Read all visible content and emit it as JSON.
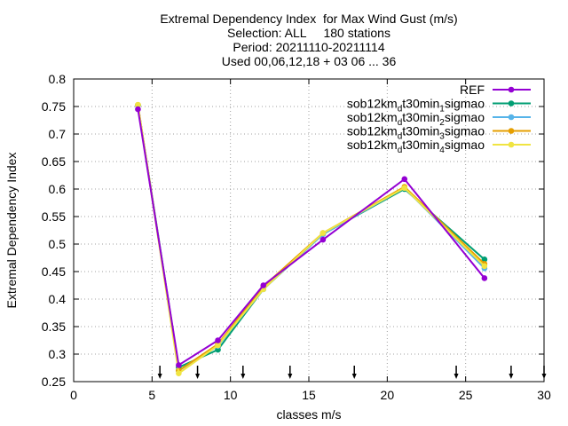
{
  "chart_data": {
    "type": "line",
    "title_lines": [
      "Extremal Dependency Index  for Max Wind Gust (m/s)",
      "Selection: ALL     180 stations",
      "Period: 20211110-20211114",
      "Used 00,06,12,18 + 03 06 ... 36"
    ],
    "xlabel": "classes m/s",
    "ylabel": "Extremal Dependency Index",
    "xlim": [
      0,
      30
    ],
    "ylim": [
      0.25,
      0.8
    ],
    "xticks": [
      0,
      5,
      10,
      15,
      20,
      25,
      30
    ],
    "yticks": [
      0.25,
      0.3,
      0.35,
      0.4,
      0.45,
      0.5,
      0.55,
      0.6,
      0.65,
      0.7,
      0.75,
      0.8
    ],
    "grid": true,
    "legend_position": "top-right",
    "class_markers": [
      5.5,
      7.9,
      10.8,
      13.8,
      17.9,
      24.4,
      27.9,
      30.0
    ],
    "series": [
      {
        "name": "REF",
        "legend": {
          "pre": "REF",
          "sub": "",
          "post": ""
        },
        "color": "#9400d3",
        "x": [
          4.1,
          6.7,
          9.2,
          12.1,
          15.9,
          21.1,
          26.2
        ],
        "y": [
          0.745,
          0.28,
          0.325,
          0.425,
          0.508,
          0.618,
          0.438
        ]
      },
      {
        "name": "sob12km_dt30min_1sigmao",
        "legend": {
          "pre": "sob12km",
          "sub": "d",
          "post": "t30min",
          "sub2": "1",
          "post2": "sigmao"
        },
        "color": "#009e73",
        "x": [
          4.1,
          6.7,
          9.2,
          12.1,
          15.9,
          21.1,
          26.2
        ],
        "y": [
          0.752,
          0.276,
          0.308,
          0.418,
          0.518,
          0.6,
          0.472
        ]
      },
      {
        "name": "sob12km_dt30min_2sigmao",
        "legend": {
          "pre": "sob12km",
          "sub": "d",
          "post": "t30min",
          "sub2": "2",
          "post2": "sigmao"
        },
        "color": "#56b4e9",
        "x": [
          4.1,
          6.7,
          9.2,
          12.1,
          15.9,
          21.1,
          26.2
        ],
        "y": [
          0.752,
          0.27,
          0.315,
          0.418,
          0.518,
          0.602,
          0.456
        ]
      },
      {
        "name": "sob12km_dt30min_3sigmao",
        "legend": {
          "pre": "sob12km",
          "sub": "d",
          "post": "t30min",
          "sub2": "3",
          "post2": "sigmao"
        },
        "color": "#e69f00",
        "x": [
          4.1,
          6.7,
          9.2,
          12.1,
          15.9,
          21.1,
          26.2
        ],
        "y": [
          0.753,
          0.27,
          0.318,
          0.423,
          0.52,
          0.604,
          0.464
        ]
      },
      {
        "name": "sob12km_dt30min_4sigmao",
        "legend": {
          "pre": "sob12km",
          "sub": "d",
          "post": "t30min",
          "sub2": "4",
          "post2": "sigmao"
        },
        "color": "#f0e442",
        "x": [
          4.1,
          6.7,
          9.2,
          12.1,
          15.9,
          21.1,
          26.2
        ],
        "y": [
          0.753,
          0.265,
          0.316,
          0.418,
          0.52,
          0.602,
          0.46
        ]
      }
    ]
  }
}
